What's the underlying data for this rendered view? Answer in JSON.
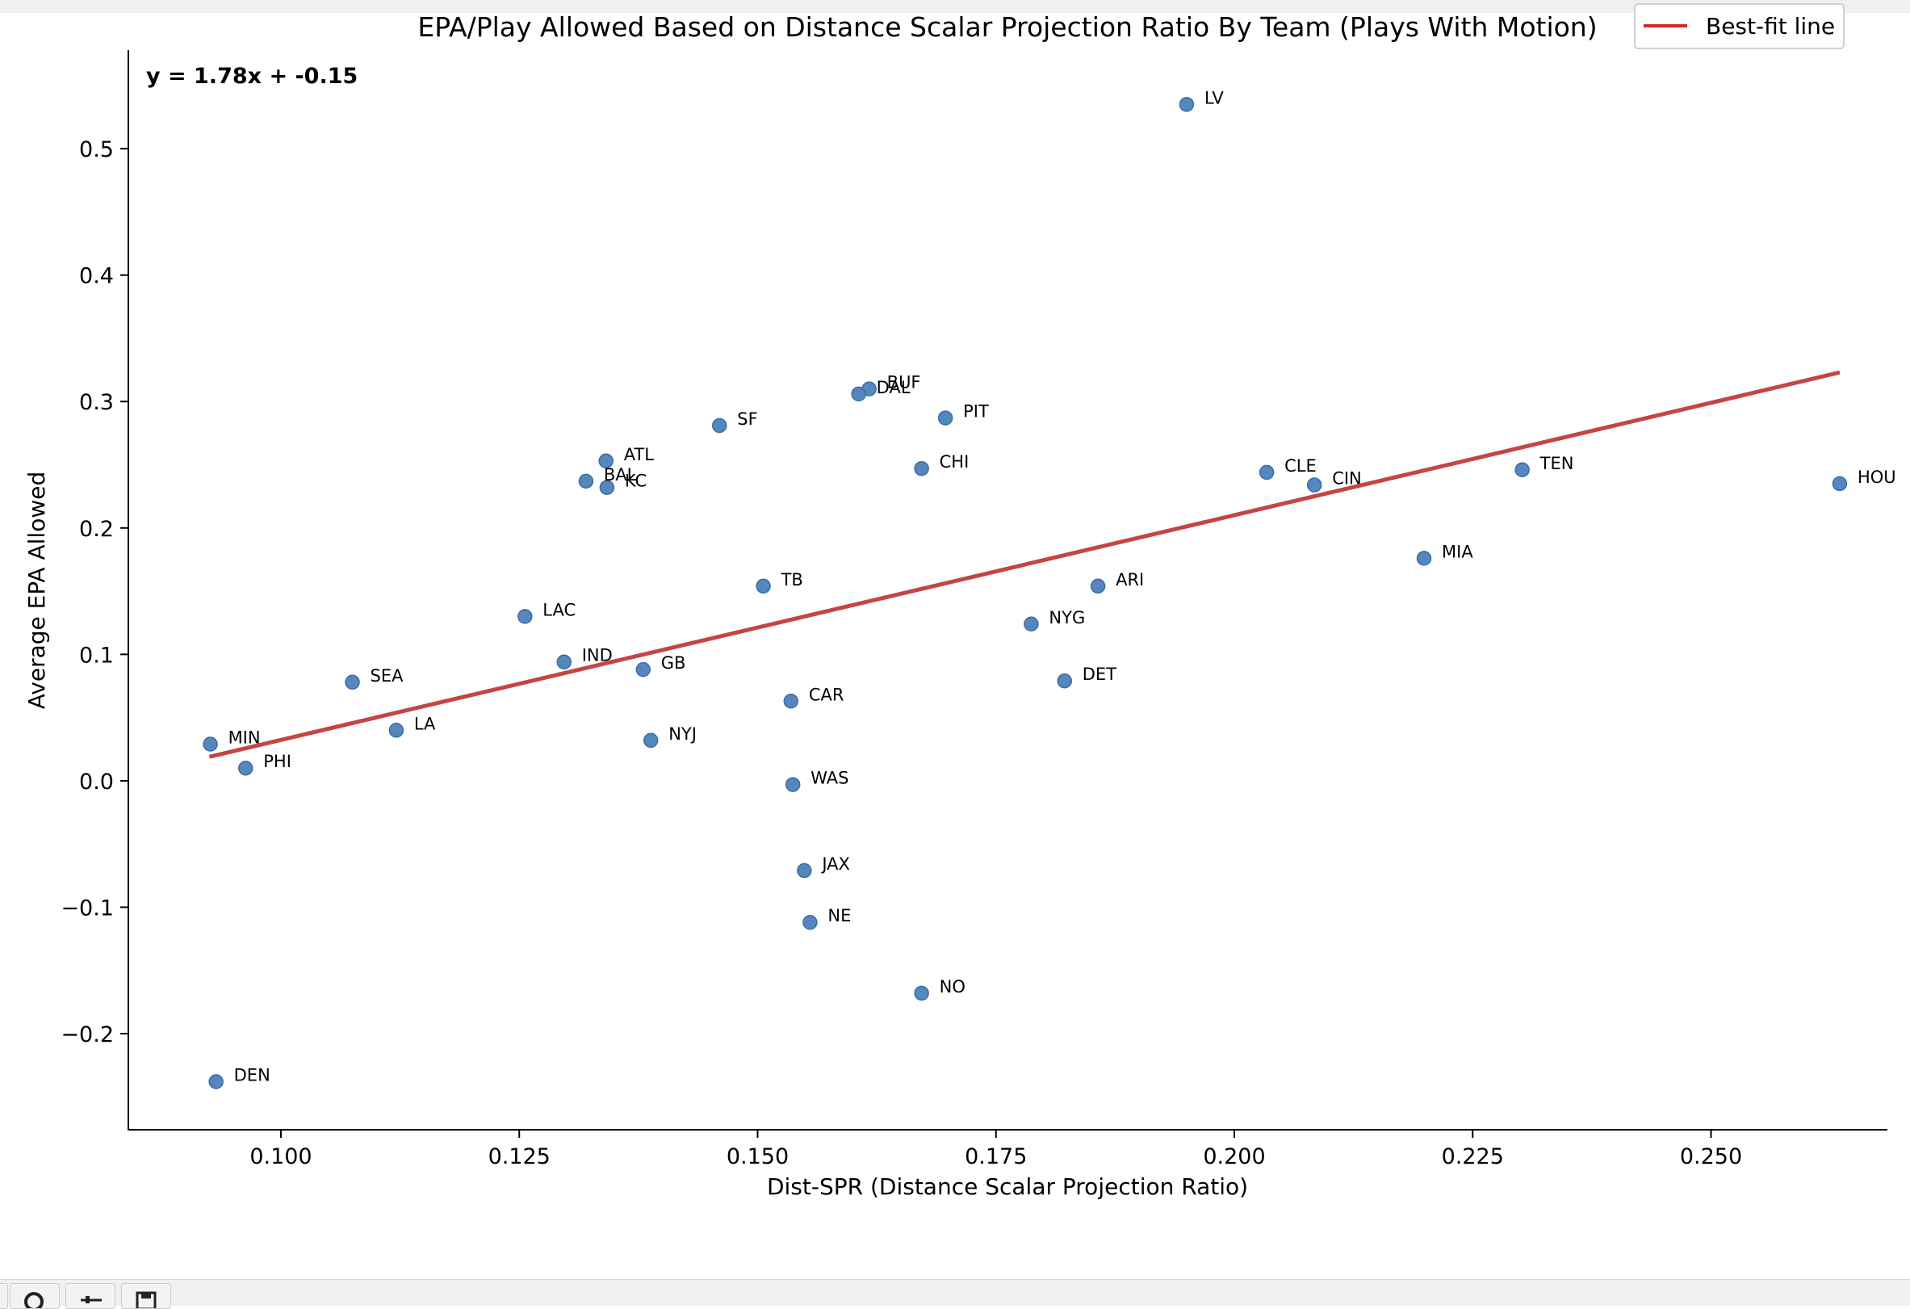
{
  "window": {
    "toolbar_icons": [
      "pan-icon",
      "zoom-icon",
      "configure-subplots-icon",
      "save-icon"
    ]
  },
  "chart_data": {
    "type": "scatter",
    "title": "EPA/Play Allowed Based on Distance Scalar Projection Ratio By Team (Plays With Motion)",
    "xlabel": "Dist-SPR (Distance Scalar Projection Ratio)",
    "ylabel": "Average EPA Allowed",
    "xlim": [
      0.084,
      0.2685
    ],
    "ylim": [
      -0.276,
      0.578
    ],
    "xticks": [
      0.1,
      0.125,
      0.15,
      0.175,
      0.2,
      0.225,
      0.25
    ],
    "xtick_labels": [
      "0.100",
      "0.125",
      "0.150",
      "0.175",
      "0.200",
      "0.225",
      "0.250"
    ],
    "yticks": [
      -0.2,
      -0.1,
      0.0,
      0.1,
      0.2,
      0.3,
      0.4,
      0.5
    ],
    "ytick_labels": [
      "−0.2",
      "−0.1",
      "0.0",
      "0.1",
      "0.2",
      "0.3",
      "0.4",
      "0.5"
    ],
    "grid": false,
    "legend_placement": "top-right",
    "point_color": "#4c7fb8",
    "fit_color": "#c03030",
    "legend_line_color": "#d62728",
    "annotation": "y = 1.78x + -0.15",
    "fit_line": {
      "name": "Best-fit line",
      "slope": 1.78,
      "intercept": -0.15,
      "x_range": [
        0.0925,
        0.2635
      ],
      "y_range": [
        0.019,
        0.323
      ]
    },
    "points": [
      {
        "label": "LV",
        "x": 0.195,
        "y": 0.535
      },
      {
        "label": "BUF",
        "x": 0.1617,
        "y": 0.31
      },
      {
        "label": "DAL",
        "x": 0.1606,
        "y": 0.306
      },
      {
        "label": "PIT",
        "x": 0.1697,
        "y": 0.287
      },
      {
        "label": "SF",
        "x": 0.146,
        "y": 0.281
      },
      {
        "label": "ATL",
        "x": 0.1341,
        "y": 0.253
      },
      {
        "label": "BAL",
        "x": 0.132,
        "y": 0.237
      },
      {
        "label": "KC",
        "x": 0.1342,
        "y": 0.232
      },
      {
        "label": "CHI",
        "x": 0.1672,
        "y": 0.247
      },
      {
        "label": "CLE",
        "x": 0.2034,
        "y": 0.244
      },
      {
        "label": "CIN",
        "x": 0.2084,
        "y": 0.234
      },
      {
        "label": "TEN",
        "x": 0.2302,
        "y": 0.246
      },
      {
        "label": "HOU",
        "x": 0.2635,
        "y": 0.235
      },
      {
        "label": "MIA",
        "x": 0.2199,
        "y": 0.176
      },
      {
        "label": "TB",
        "x": 0.1506,
        "y": 0.154
      },
      {
        "label": "ARI",
        "x": 0.1857,
        "y": 0.154
      },
      {
        "label": "LAC",
        "x": 0.1256,
        "y": 0.13
      },
      {
        "label": "NYG",
        "x": 0.1787,
        "y": 0.124
      },
      {
        "label": "IND",
        "x": 0.1297,
        "y": 0.094
      },
      {
        "label": "GB",
        "x": 0.138,
        "y": 0.088
      },
      {
        "label": "SEA",
        "x": 0.1075,
        "y": 0.078
      },
      {
        "label": "DET",
        "x": 0.1822,
        "y": 0.079
      },
      {
        "label": "CAR",
        "x": 0.1535,
        "y": 0.063
      },
      {
        "label": "LA",
        "x": 0.1121,
        "y": 0.04
      },
      {
        "label": "NYJ",
        "x": 0.1388,
        "y": 0.032
      },
      {
        "label": "MIN",
        "x": 0.0926,
        "y": 0.029
      },
      {
        "label": "PHI",
        "x": 0.0963,
        "y": 0.01
      },
      {
        "label": "WAS",
        "x": 0.1537,
        "y": -0.003
      },
      {
        "label": "JAX",
        "x": 0.1549,
        "y": -0.071
      },
      {
        "label": "NE",
        "x": 0.1555,
        "y": -0.112
      },
      {
        "label": "NO",
        "x": 0.1672,
        "y": -0.168
      },
      {
        "label": "DEN",
        "x": 0.0932,
        "y": -0.238
      }
    ]
  }
}
